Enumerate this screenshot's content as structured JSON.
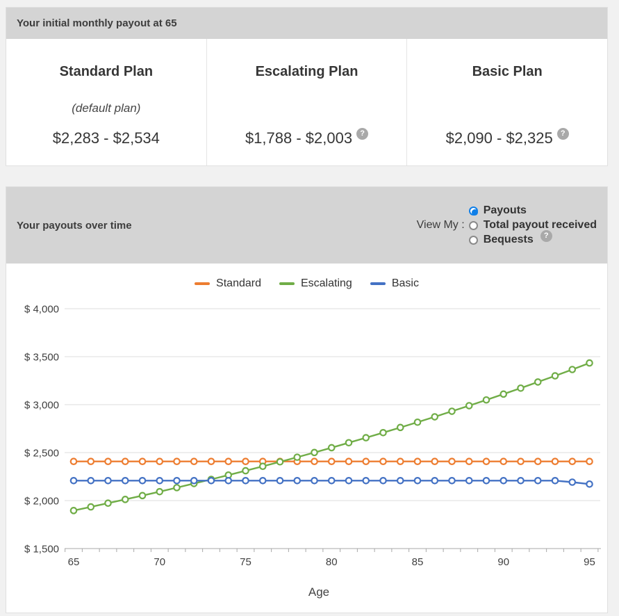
{
  "panel_initial": {
    "header": "Your initial monthly payout at 65",
    "plans": [
      {
        "title": "Standard Plan",
        "subtitle": "(default plan)",
        "amount": "$2,283 - $2,534",
        "has_help": false
      },
      {
        "title": "Escalating Plan",
        "subtitle": "",
        "amount": "$1,788 - $2,003",
        "has_help": true
      },
      {
        "title": "Basic Plan",
        "subtitle": "",
        "amount": "$2,090 - $2,325",
        "has_help": true
      }
    ]
  },
  "panel_payouts": {
    "header": "Your payouts over time",
    "view_my_label": "View My :",
    "options": [
      {
        "label": "Payouts",
        "selected": true,
        "has_help": false
      },
      {
        "label": "Total payout received",
        "selected": false,
        "has_help": false
      },
      {
        "label": "Bequests",
        "selected": false,
        "has_help": true
      }
    ]
  },
  "icons": {
    "help_glyph": "?"
  },
  "colors": {
    "radio_accent": "#0f7fe8",
    "header_bar": "#d4d4d4",
    "standard": "#ED7D31",
    "escalating": "#70AD47",
    "basic": "#4472C4"
  },
  "chart_data": {
    "type": "line",
    "title": "",
    "xlabel": "Age",
    "ylabel": "",
    "ylim": [
      1500,
      4000
    ],
    "grid": "horizontal",
    "legend_position": "top",
    "marker": "open-circle",
    "x": [
      65,
      66,
      67,
      68,
      69,
      70,
      71,
      72,
      73,
      74,
      75,
      76,
      77,
      78,
      79,
      80,
      81,
      82,
      83,
      84,
      85,
      86,
      87,
      88,
      89,
      90,
      91,
      92,
      93,
      94,
      95
    ],
    "x_ticks": [
      {
        "v": 65,
        "label": "65"
      },
      {
        "v": 70,
        "label": "70"
      },
      {
        "v": 75,
        "label": "75"
      },
      {
        "v": 80,
        "label": "80"
      },
      {
        "v": 85,
        "label": "85"
      },
      {
        "v": 90,
        "label": "90"
      },
      {
        "v": 95,
        "label": "95"
      }
    ],
    "y_ticks": [
      {
        "v": 1500,
        "label": "$ 1,500"
      },
      {
        "v": 2000,
        "label": "$ 2,000"
      },
      {
        "v": 2500,
        "label": "$ 2,500"
      },
      {
        "v": 3000,
        "label": "$ 3,000"
      },
      {
        "v": 3500,
        "label": "$ 3,500"
      },
      {
        "v": 4000,
        "label": "$ 4,000"
      }
    ],
    "series": [
      {
        "name": "Standard",
        "color": "#ED7D31",
        "values": [
          2408,
          2408,
          2408,
          2408,
          2408,
          2408,
          2408,
          2408,
          2408,
          2408,
          2408,
          2408,
          2408,
          2408,
          2408,
          2408,
          2408,
          2408,
          2408,
          2408,
          2408,
          2408,
          2408,
          2408,
          2408,
          2408,
          2408,
          2408,
          2408,
          2408,
          2408
        ]
      },
      {
        "name": "Escalating",
        "color": "#70AD47",
        "values": [
          1896,
          1934,
          1973,
          2012,
          2052,
          2093,
          2135,
          2178,
          2221,
          2266,
          2311,
          2357,
          2404,
          2452,
          2501,
          2551,
          2603,
          2655,
          2708,
          2762,
          2817,
          2873,
          2931,
          2989,
          3049,
          3110,
          3172,
          3236,
          3300,
          3366,
          3434
        ]
      },
      {
        "name": "Basic",
        "color": "#4472C4",
        "values": [
          2208,
          2208,
          2208,
          2208,
          2208,
          2208,
          2208,
          2208,
          2208,
          2208,
          2208,
          2208,
          2208,
          2208,
          2208,
          2208,
          2208,
          2208,
          2208,
          2208,
          2208,
          2208,
          2208,
          2208,
          2208,
          2208,
          2208,
          2208,
          2208,
          2192,
          2172
        ]
      }
    ]
  }
}
